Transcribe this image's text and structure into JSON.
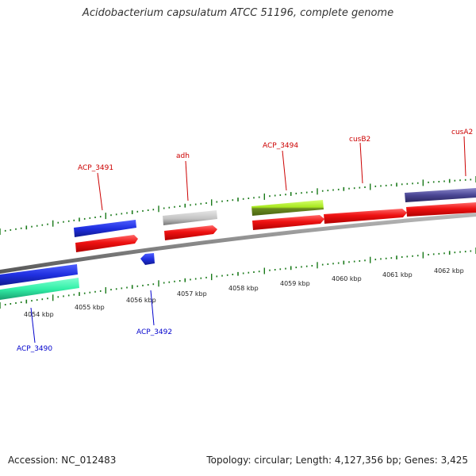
{
  "title": "Acidobacterium capsulatum ATCC 51196, complete genome",
  "footer": {
    "accession": "Accession: NC_012483",
    "summary": "Topology: circular; Length: 4,127,356 bp; Genes: 3,425"
  },
  "colors": {
    "backbone": "#8a8a8a",
    "forward_label": "#cc0000",
    "reverse_label": "#0000cc",
    "ticks": "#1a7a1a"
  },
  "ruler": [
    {
      "label": "4054 kbp"
    },
    {
      "label": "4055 kbp"
    },
    {
      "label": "4056 kbp"
    },
    {
      "label": "4057 kbp"
    },
    {
      "label": "4058 kbp"
    },
    {
      "label": "4059 kbp"
    },
    {
      "label": "4060 kbp"
    },
    {
      "label": "4061 kbp"
    },
    {
      "label": "4062 kbp"
    }
  ],
  "gene_labels_forward": [
    {
      "name": "ACP_3491"
    },
    {
      "name": "adh"
    },
    {
      "name": "ACP_3494"
    },
    {
      "name": "cusB2"
    },
    {
      "name": "cusA2"
    }
  ],
  "gene_labels_reverse": [
    {
      "name": "ACP_3490"
    },
    {
      "name": "ACP_3492"
    }
  ],
  "feature_colors": {
    "cds": "#ee1111",
    "gene_blue": "#1f2fe0",
    "gene_teal": "#33f0a8",
    "gene_gray": "#c4c4c4",
    "gene_lime": "#a8e820",
    "gene_navy": "#4a4694"
  }
}
